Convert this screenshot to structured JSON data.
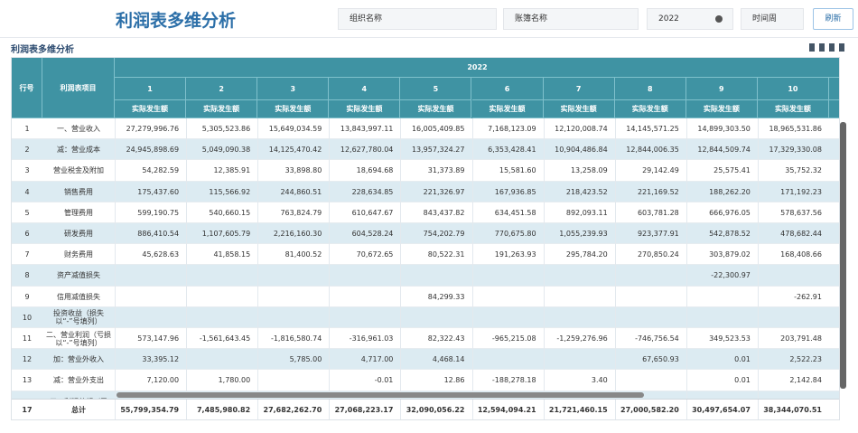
{
  "header": {
    "title": "利润表多维分析",
    "filters": [
      "组织名称",
      "账簿名称",
      "2022",
      "时间周"
    ],
    "refresh": "刷新"
  },
  "panel": {
    "title": "利润表多维分析"
  },
  "table": {
    "head": {
      "row_no": "行号",
      "item": "利润表项目",
      "year": "2022",
      "periods": [
        "1",
        "2",
        "3",
        "4",
        "5",
        "6",
        "7",
        "8",
        "9",
        "10"
      ],
      "measure": "实际发生额"
    },
    "rows": [
      {
        "no": "1",
        "item": "一、营业收入",
        "values": [
          "27,279,996.76",
          "5,305,523.86",
          "15,649,034.59",
          "13,843,997.11",
          "16,005,409.85",
          "7,168,123.09",
          "12,120,008.74",
          "14,145,571.25",
          "14,899,303.50",
          "18,965,531.86"
        ]
      },
      {
        "no": "2",
        "item": "减：营业成本",
        "values": [
          "24,945,898.69",
          "5,049,090.38",
          "14,125,470.42",
          "12,627,780.04",
          "13,957,324.27",
          "6,353,428.41",
          "10,904,486.84",
          "12,844,006.35",
          "12,844,509.74",
          "17,329,330.08"
        ]
      },
      {
        "no": "3",
        "item": "营业税金及附加",
        "values": [
          "54,282.59",
          "12,385.91",
          "33,898.80",
          "18,694.68",
          "31,373.89",
          "15,581.60",
          "13,258.09",
          "29,142.49",
          "25,575.41",
          "35,752.32"
        ]
      },
      {
        "no": "4",
        "item": "销售费用",
        "values": [
          "175,437.60",
          "115,566.92",
          "244,860.51",
          "228,634.85",
          "221,326.97",
          "167,936.85",
          "218,423.52",
          "221,169.52",
          "188,262.20",
          "171,192.23"
        ]
      },
      {
        "no": "5",
        "item": "管理费用",
        "values": [
          "599,190.75",
          "540,660.15",
          "763,824.79",
          "610,647.67",
          "843,437.82",
          "634,451.58",
          "892,093.11",
          "603,781.28",
          "666,976.05",
          "578,637.56"
        ]
      },
      {
        "no": "6",
        "item": "研发费用",
        "values": [
          "886,410.54",
          "1,107,605.79",
          "2,216,160.30",
          "604,528.24",
          "754,202.79",
          "770,675.80",
          "1,055,239.93",
          "923,377.91",
          "542,878.52",
          "478,682.44"
        ]
      },
      {
        "no": "7",
        "item": "财务费用",
        "values": [
          "45,628.63",
          "41,858.15",
          "81,400.52",
          "70,672.65",
          "80,522.31",
          "191,263.93",
          "295,784.20",
          "270,850.24",
          "303,879.02",
          "168,408.66"
        ]
      },
      {
        "no": "8",
        "item": "资产减值损失",
        "values": [
          null,
          null,
          null,
          null,
          null,
          null,
          null,
          null,
          "-22,300.97",
          null
        ]
      },
      {
        "no": "9",
        "item": "信用减值损失",
        "values": [
          null,
          null,
          null,
          null,
          "84,299.33",
          null,
          null,
          null,
          null,
          "-262.91"
        ]
      },
      {
        "no": "10",
        "item": "投资收益（损失以“-”号填列）",
        "values": [
          null,
          null,
          null,
          null,
          null,
          null,
          null,
          null,
          null,
          null
        ]
      },
      {
        "no": "11",
        "item": "二、营业利润（亏损以“-”号填列）",
        "values": [
          "573,147.96",
          "-1,561,643.45",
          "-1,816,580.74",
          "-316,961.03",
          "82,322.43",
          "-965,215.08",
          "-1,259,276.96",
          "-746,756.54",
          "349,523.53",
          "203,791.48"
        ]
      },
      {
        "no": "12",
        "item": "加：营业外收入",
        "values": [
          "33,395.12",
          null,
          "5,785.00",
          "4,717.00",
          "4,468.14",
          null,
          null,
          "67,650.93",
          "0.01",
          "2,522.23"
        ]
      },
      {
        "no": "13",
        "item": "减：营业外支出",
        "values": [
          "7,120.00",
          "1,780.00",
          null,
          "-0.01",
          "12.86",
          "-188,278.18",
          "3.40",
          null,
          "0.01",
          "2,142.84"
        ]
      },
      {
        "no": null,
        "item": "三、利润总额（亏",
        "values": [
          null,
          null,
          null,
          null,
          null,
          null,
          null,
          null,
          null,
          null
        ]
      }
    ],
    "total": {
      "no": "17",
      "item": "总计",
      "values": [
        "55,799,354.79",
        "7,485,980.82",
        "27,682,262.70",
        "27,068,223.17",
        "32,090,056.22",
        "12,594,094.21",
        "21,721,460.15",
        "27,000,582.20",
        "30,497,654.07",
        "38,344,070.51"
      ]
    }
  }
}
